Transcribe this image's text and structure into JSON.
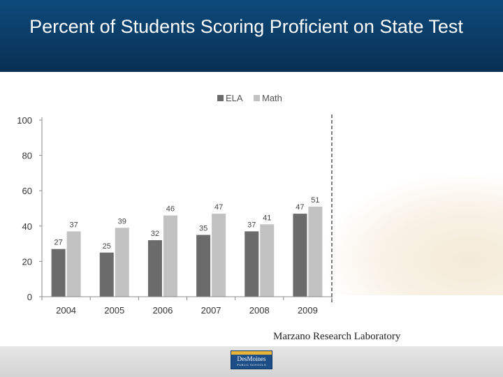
{
  "slide": {
    "title": "Percent of Students Scoring Proficient on State Test",
    "source": "Marzano Research Laboratory"
  },
  "logo": {
    "name": "DesMoines",
    "subtitle": "PUBLIC SCHOOLS"
  },
  "colors": {
    "header": "#0b3f6b",
    "ela": "#6b6b6b",
    "math": "#c2c2c2"
  },
  "chart_data": {
    "type": "bar",
    "categories": [
      "2004",
      "2005",
      "2006",
      "2007",
      "2008",
      "2009"
    ],
    "series": [
      {
        "name": "ELA",
        "values": [
          27,
          25,
          32,
          35,
          37,
          47
        ]
      },
      {
        "name": "Math",
        "values": [
          37,
          39,
          46,
          47,
          41,
          51
        ]
      }
    ],
    "yticks": [
      0,
      20,
      40,
      60,
      80,
      100
    ],
    "ylim": [
      0,
      100
    ],
    "legend_position": "top",
    "grid": false
  }
}
